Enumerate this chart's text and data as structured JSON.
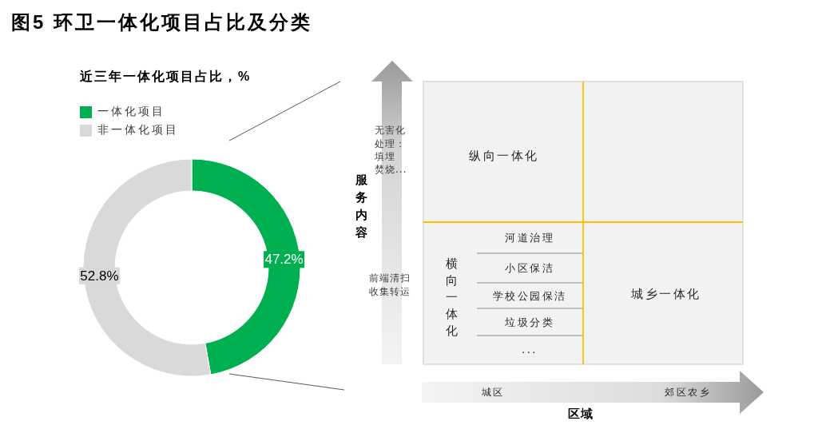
{
  "chart_data": [
    {
      "type": "donut",
      "title": "图5 环卫一体化项目占比及分类",
      "subtitle": "近三年一体化项目占比，%",
      "categories": [
        "一体化项目",
        "非一体化项目"
      ],
      "values": [
        47.2,
        52.8
      ],
      "colors": [
        "#00b050",
        "#d9d9d9"
      ],
      "value_labels": [
        "47.2%",
        "52.8%"
      ],
      "legend": "top left"
    },
    {
      "type": "other",
      "xlabel": "区域",
      "ylabel": "服务内容",
      "annotations": [
        "无害化处理：",
        "填埋",
        "焚烧...",
        "前端清扫收集转运",
        "纵向一体化",
        "横向一体化",
        "城乡一体化",
        "河道治理",
        "小区保洁",
        "学校公园保洁",
        "垃圾分类",
        "...",
        "城区",
        "郊区农乡"
      ]
    }
  ]
}
